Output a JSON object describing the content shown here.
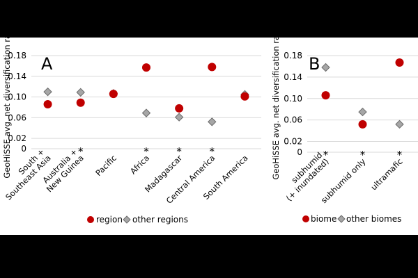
{
  "colors": {
    "background": "#000000",
    "figure_bg": "#ffffff",
    "red_marker": "#c00000",
    "gray_marker": "#a6a6a6",
    "gridline": "#d9d9d9"
  },
  "chart_data": [
    {
      "type": "scatter",
      "panel_label": "A",
      "ylabel": "GeoHiSSE avg. net diversification rate",
      "yticks": [
        "0",
        "0.02",
        "0.06",
        "0.10",
        "0.14",
        "0.18"
      ],
      "ylim": [
        0,
        0.18
      ],
      "grid": true,
      "legend_position": "bottom",
      "categories": [
        [
          "South +",
          "Southeast Asia"
        ],
        [
          "Australia +",
          "New Guinea"
        ],
        [
          "Pacific"
        ],
        [
          "Africa"
        ],
        [
          "Madagascar"
        ],
        [
          "Central America"
        ],
        [
          "South America"
        ]
      ],
      "significance": [
        "",
        "*",
        "",
        "*",
        "*",
        "*",
        ""
      ],
      "series": [
        {
          "name": "region",
          "marker": "circle",
          "values": [
            0.086,
            0.089,
            0.106,
            0.157,
            0.078,
            0.158,
            0.101
          ]
        },
        {
          "name": "other regions",
          "marker": "diamond",
          "values": [
            0.11,
            0.109,
            0.107,
            0.069,
            0.061,
            0.052,
            0.105
          ]
        }
      ]
    },
    {
      "type": "scatter",
      "panel_label": "B",
      "ylabel": "GeoHiSSE avg. net diversification rate",
      "yticks": [
        "0",
        "0.02",
        "0.06",
        "0.10",
        "0.14",
        "0.18"
      ],
      "ylim": [
        0,
        0.18
      ],
      "grid": true,
      "legend_position": "bottom",
      "categories": [
        [
          "subhumid",
          "(+ inundated)"
        ],
        [
          "subhumid only"
        ],
        [
          "ultramafic"
        ]
      ],
      "significance": [
        "*",
        "*",
        "*"
      ],
      "series": [
        {
          "name": "biome",
          "marker": "circle",
          "values": [
            0.106,
            0.052,
            0.167
          ]
        },
        {
          "name": "other biomes",
          "marker": "diamond",
          "values": [
            0.158,
            0.075,
            0.052
          ]
        }
      ]
    }
  ]
}
